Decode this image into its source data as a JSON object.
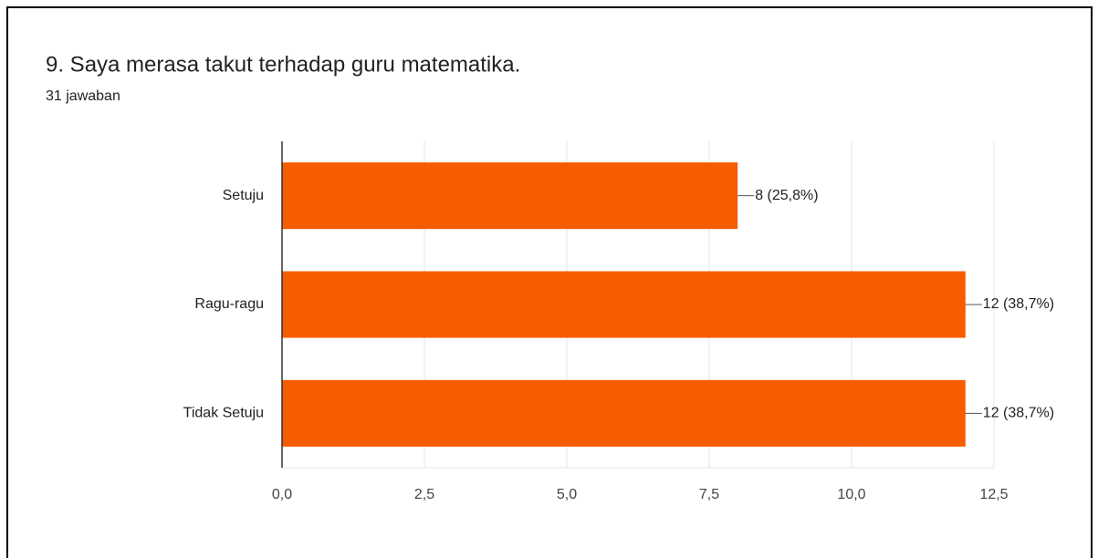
{
  "chart_data": {
    "type": "bar",
    "orientation": "horizontal",
    "title": "9. Saya merasa takut terhadap guru matematika.",
    "subtitle": "31 jawaban",
    "categories": [
      "Setuju",
      "Ragu-ragu",
      "Tidak Setuju"
    ],
    "values": [
      8,
      12,
      12
    ],
    "value_labels": [
      "8 (25,8%)",
      "12 (38,7%)",
      "12 (38,7%)"
    ],
    "color": "#f65c00",
    "xlim": [
      0,
      12.5
    ],
    "xticks": [
      {
        "value": 0,
        "label": "0,0"
      },
      {
        "value": 2.5,
        "label": "2,5"
      },
      {
        "value": 5,
        "label": "5,0"
      },
      {
        "value": 7.5,
        "label": "7,5"
      },
      {
        "value": 10,
        "label": "10,0"
      },
      {
        "value": 12.5,
        "label": "12,5"
      }
    ],
    "grid": true
  }
}
